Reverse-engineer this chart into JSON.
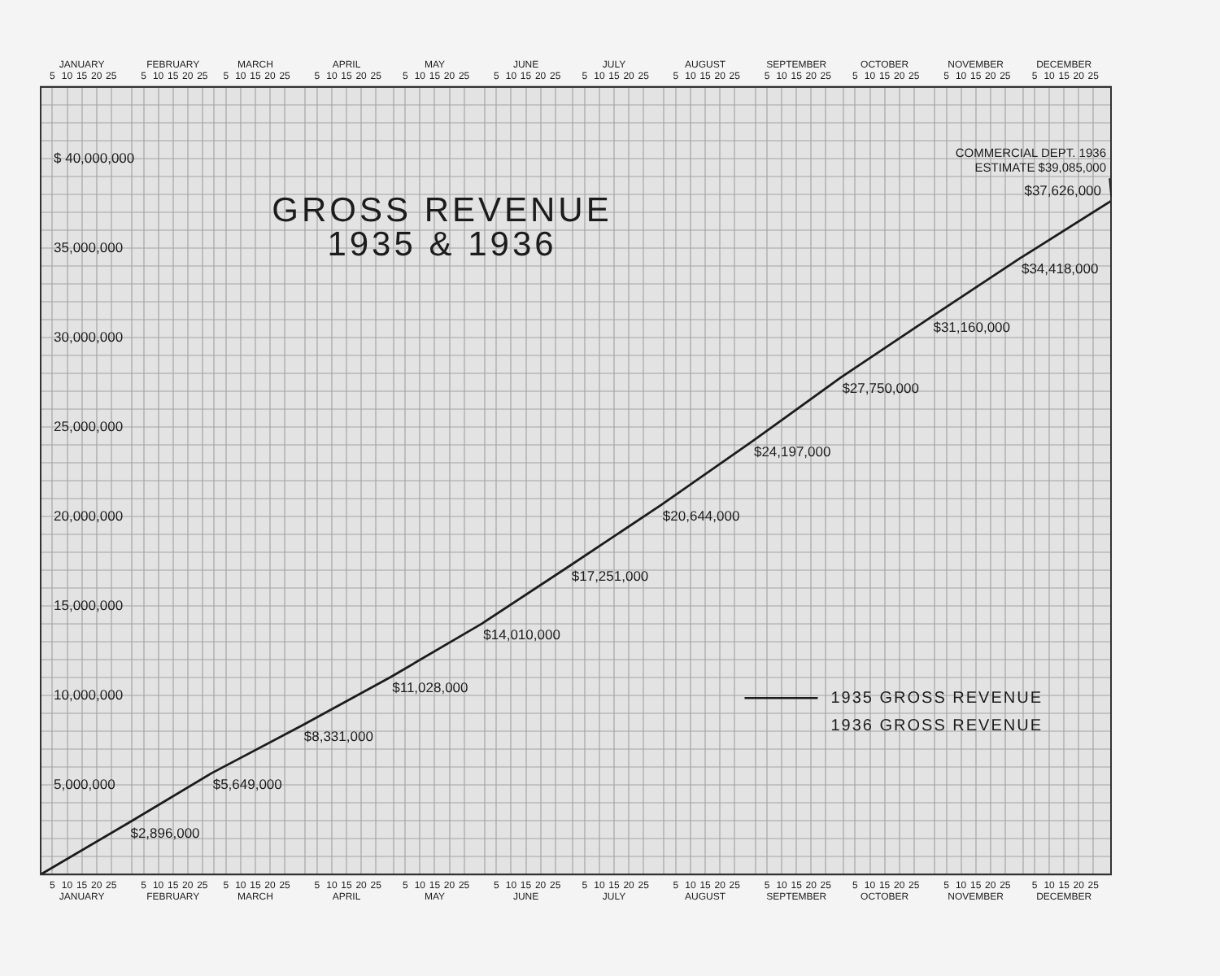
{
  "chart_data": {
    "type": "line",
    "title": "GROSS REVENUE",
    "subtitle": "1935 & 1936",
    "x": [
      "--01-01",
      "--01-31",
      "--02-28",
      "--03-31",
      "--04-30",
      "--05-31",
      "--06-30",
      "--07-31",
      "--08-31",
      "--09-30",
      "--10-31",
      "--11-30",
      "--12-31"
    ],
    "series": [
      {
        "name": "1935 GROSS REVENUE",
        "color": "#1c1c1c",
        "values": [
          0,
          2896000,
          5649000,
          8331000,
          11028000,
          14010000,
          17251000,
          20644000,
          24197000,
          27750000,
          31160000,
          34418000,
          37626000
        ],
        "value_labels": [
          null,
          "$2,896,000",
          "$5,649,000",
          "$8,331,000",
          "$11,028,000",
          "$14,010,000",
          "$17,251,000",
          "$20,644,000",
          "$24,197,000",
          "$27,750,000",
          "$31,160,000",
          "$34,418,000",
          "$37,626,000"
        ]
      },
      {
        "name": "1936 GROSS REVENUE",
        "values": [
          null,
          null,
          null,
          null,
          null,
          null,
          null,
          null,
          null,
          null,
          null,
          null,
          null
        ]
      }
    ],
    "xlim": [
      "--01-01",
      "--12-31"
    ],
    "xticks": [
      {
        "value": "--01-01",
        "label": null
      },
      {
        "value": "--01-05",
        "label": "5"
      },
      {
        "value": "--01-10",
        "label": "10"
      },
      {
        "value": "--01-15",
        "label": "15\nJANUARY"
      },
      {
        "value": "--01-20",
        "label": "20"
      },
      {
        "value": "--01-25",
        "label": "25"
      },
      {
        "value": "--02-01",
        "label": null
      },
      {
        "value": "--02-05",
        "label": "5"
      },
      {
        "value": "--02-10",
        "label": "10"
      },
      {
        "value": "--02-15",
        "label": "15\nFEBRUARY"
      },
      {
        "value": "--02-20",
        "label": "20"
      },
      {
        "value": "--02-25",
        "label": "25"
      },
      {
        "value": "--03-01",
        "label": null
      },
      {
        "value": "--03-05",
        "label": "5"
      },
      {
        "value": "--03-10",
        "label": "10"
      },
      {
        "value": "--03-15",
        "label": "15\nMARCH"
      },
      {
        "value": "--03-20",
        "label": "20"
      },
      {
        "value": "--03-25",
        "label": "25"
      },
      {
        "value": "--04-01",
        "label": null
      },
      {
        "value": "--04-05",
        "label": "5"
      },
      {
        "value": "--04-10",
        "label": "10"
      },
      {
        "value": "--04-15",
        "label": "15\nAPRIL"
      },
      {
        "value": "--04-20",
        "label": "20"
      },
      {
        "value": "--04-25",
        "label": "25"
      },
      {
        "value": "--05-01",
        "label": null
      },
      {
        "value": "--05-05",
        "label": "5"
      },
      {
        "value": "--05-10",
        "label": "10"
      },
      {
        "value": "--05-15",
        "label": "15\nMAY"
      },
      {
        "value": "--05-20",
        "label": "20"
      },
      {
        "value": "--05-25",
        "label": "25"
      },
      {
        "value": "--06-01",
        "label": null
      },
      {
        "value": "--06-05",
        "label": "5"
      },
      {
        "value": "--06-10",
        "label": "10"
      },
      {
        "value": "--06-15",
        "label": "15\nJUNE"
      },
      {
        "value": "--06-20",
        "label": "20"
      },
      {
        "value": "--06-25",
        "label": "25"
      },
      {
        "value": "--07-01",
        "label": null
      },
      {
        "value": "--07-05",
        "label": "5"
      },
      {
        "value": "--07-10",
        "label": "10"
      },
      {
        "value": "--07-15",
        "label": "15\nJULY"
      },
      {
        "value": "--07-20",
        "label": "20"
      },
      {
        "value": "--07-25",
        "label": "25"
      },
      {
        "value": "--08-01",
        "label": null
      },
      {
        "value": "--08-05",
        "label": "5"
      },
      {
        "value": "--08-10",
        "label": "10"
      },
      {
        "value": "--08-15",
        "label": "15\nAUGUST"
      },
      {
        "value": "--08-20",
        "label": "20"
      },
      {
        "value": "--08-25",
        "label": "25"
      },
      {
        "value": "--09-01",
        "label": null
      },
      {
        "value": "--09-05",
        "label": "5"
      },
      {
        "value": "--09-10",
        "label": "10"
      },
      {
        "value": "--09-15",
        "label": "15\nSEPTEMBER"
      },
      {
        "value": "--09-20",
        "label": "20"
      },
      {
        "value": "--09-25",
        "label": "25"
      },
      {
        "value": "--10-01",
        "label": null
      },
      {
        "value": "--10-05",
        "label": "5"
      },
      {
        "value": "--10-10",
        "label": "10"
      },
      {
        "value": "--10-15",
        "label": "15\nOCTOBER"
      },
      {
        "value": "--10-20",
        "label": "20"
      },
      {
        "value": "--10-25",
        "label": "25"
      },
      {
        "value": "--11-01",
        "label": null
      },
      {
        "value": "--11-05",
        "label": "5"
      },
      {
        "value": "--11-10",
        "label": "10"
      },
      {
        "value": "--11-15",
        "label": "15\nNOVEMBER"
      },
      {
        "value": "--11-20",
        "label": "20"
      },
      {
        "value": "--11-25",
        "label": "25"
      },
      {
        "value": "--12-01",
        "label": null
      },
      {
        "value": "--12-05",
        "label": "5"
      },
      {
        "value": "--12-10",
        "label": "10"
      },
      {
        "value": "--12-15",
        "label": "15\nDECEMBER"
      },
      {
        "value": "--12-20",
        "label": "20"
      },
      {
        "value": "--12-25",
        "label": "25"
      },
      {
        "value": "--12-31",
        "label": null
      }
    ],
    "x2lim": [
      "--01-01",
      "--12-31"
    ],
    "x2ticks": [
      {
        "value": "--01-01",
        "label": null
      },
      {
        "value": "--01-05",
        "label": "5"
      },
      {
        "value": "--01-10",
        "label": "10"
      },
      {
        "value": "--01-15",
        "label": "JANUARY\n15"
      },
      {
        "value": "--01-20",
        "label": "20"
      },
      {
        "value": "--01-25",
        "label": "25"
      },
      {
        "value": "--02-01",
        "label": null
      },
      {
        "value": "--02-05",
        "label": "5"
      },
      {
        "value": "--02-10",
        "label": "10"
      },
      {
        "value": "--02-15",
        "label": "FEBRUARY\n15"
      },
      {
        "value": "--02-20",
        "label": "20"
      },
      {
        "value": "--02-25",
        "label": "25"
      },
      {
        "value": "--03-01",
        "label": null
      },
      {
        "value": "--03-05",
        "label": "5"
      },
      {
        "value": "--03-10",
        "label": "10"
      },
      {
        "value": "--03-15",
        "label": "MARCH\n15"
      },
      {
        "value": "--03-20",
        "label": "20"
      },
      {
        "value": "--03-25",
        "label": "25"
      },
      {
        "value": "--04-01",
        "label": null
      },
      {
        "value": "--04-05",
        "label": "5"
      },
      {
        "value": "--04-10",
        "label": "10"
      },
      {
        "value": "--04-15",
        "label": "APRIL\n15"
      },
      {
        "value": "--04-20",
        "label": "20"
      },
      {
        "value": "--04-25",
        "label": "25"
      },
      {
        "value": "--05-01",
        "label": null
      },
      {
        "value": "--05-05",
        "label": "5"
      },
      {
        "value": "--05-10",
        "label": "10"
      },
      {
        "value": "--05-15",
        "label": "MAY\n15"
      },
      {
        "value": "--05-20",
        "label": "20"
      },
      {
        "value": "--05-25",
        "label": "25"
      },
      {
        "value": "--06-01",
        "label": null
      },
      {
        "value": "--06-05",
        "label": "5"
      },
      {
        "value": "--06-10",
        "label": "10"
      },
      {
        "value": "--06-15",
        "label": "JUNE\n15"
      },
      {
        "value": "--06-20",
        "label": "20"
      },
      {
        "value": "--06-25",
        "label": "25"
      },
      {
        "value": "--07-01",
        "label": null
      },
      {
        "value": "--07-05",
        "label": "5"
      },
      {
        "value": "--07-10",
        "label": "10"
      },
      {
        "value": "--07-15",
        "label": "JULY\n15"
      },
      {
        "value": "--07-20",
        "label": "20"
      },
      {
        "value": "--07-25",
        "label": "25"
      },
      {
        "value": "--08-01",
        "label": null
      },
      {
        "value": "--08-05",
        "label": "5"
      },
      {
        "value": "--08-10",
        "label": "10"
      },
      {
        "value": "--08-15",
        "label": "AUGUST\n15"
      },
      {
        "value": "--08-20",
        "label": "20"
      },
      {
        "value": "--08-25",
        "label": "25"
      },
      {
        "value": "--09-01",
        "label": null
      },
      {
        "value": "--09-05",
        "label": "5"
      },
      {
        "value": "--09-10",
        "label": "10"
      },
      {
        "value": "--09-15",
        "label": "SEPTEMBER\n15"
      },
      {
        "value": "--09-20",
        "label": "20"
      },
      {
        "value": "--09-25",
        "label": "25"
      },
      {
        "value": "--10-01",
        "label": null
      },
      {
        "value": "--10-05",
        "label": "5"
      },
      {
        "value": "--10-10",
        "label": "10"
      },
      {
        "value": "--10-15",
        "label": "OCTOBER\n15"
      },
      {
        "value": "--10-20",
        "label": "20"
      },
      {
        "value": "--10-25",
        "label": "25"
      },
      {
        "value": "--11-01",
        "label": null
      },
      {
        "value": "--11-05",
        "label": "5"
      },
      {
        "value": "--11-10",
        "label": "10"
      },
      {
        "value": "--11-15",
        "label": "NOVEMBER\n15"
      },
      {
        "value": "--11-20",
        "label": "20"
      },
      {
        "value": "--11-25",
        "label": "25"
      },
      {
        "value": "--12-01",
        "label": null
      },
      {
        "value": "--12-05",
        "label": "5"
      },
      {
        "value": "--12-10",
        "label": "10"
      },
      {
        "value": "--12-15",
        "label": "DECEMBER\n15"
      },
      {
        "value": "--12-20",
        "label": "20"
      },
      {
        "value": "--12-25",
        "label": "25"
      },
      {
        "value": "--12-31",
        "label": null
      }
    ],
    "ylim": [
      0,
      44000000
    ],
    "yticks": [
      {
        "value": 0,
        "label": null
      },
      {
        "value": 1000000,
        "label": null
      },
      {
        "value": 2000000,
        "label": null
      },
      {
        "value": 3000000,
        "label": null
      },
      {
        "value": 4000000,
        "label": null
      },
      {
        "value": 5000000,
        "label": "5,000,000"
      },
      {
        "value": 6000000,
        "label": null
      },
      {
        "value": 7000000,
        "label": null
      },
      {
        "value": 8000000,
        "label": null
      },
      {
        "value": 9000000,
        "label": null
      },
      {
        "value": 10000000,
        "label": "10,000,000"
      },
      {
        "value": 11000000,
        "label": null
      },
      {
        "value": 12000000,
        "label": null
      },
      {
        "value": 13000000,
        "label": null
      },
      {
        "value": 14000000,
        "label": null
      },
      {
        "value": 15000000,
        "label": "15,000,000"
      },
      {
        "value": 16000000,
        "label": null
      },
      {
        "value": 17000000,
        "label": null
      },
      {
        "value": 18000000,
        "label": null
      },
      {
        "value": 19000000,
        "label": null
      },
      {
        "value": 20000000,
        "label": "20,000,000"
      },
      {
        "value": 21000000,
        "label": null
      },
      {
        "value": 22000000,
        "label": null
      },
      {
        "value": 23000000,
        "label": null
      },
      {
        "value": 24000000,
        "label": null
      },
      {
        "value": 25000000,
        "label": "25,000,000"
      },
      {
        "value": 26000000,
        "label": null
      },
      {
        "value": 27000000,
        "label": null
      },
      {
        "value": 28000000,
        "label": null
      },
      {
        "value": 29000000,
        "label": null
      },
      {
        "value": 30000000,
        "label": "30,000,000"
      },
      {
        "value": 31000000,
        "label": null
      },
      {
        "value": 32000000,
        "label": null
      },
      {
        "value": 33000000,
        "label": null
      },
      {
        "value": 34000000,
        "label": null
      },
      {
        "value": 35000000,
        "label": "35,000,000"
      },
      {
        "value": 36000000,
        "label": null
      },
      {
        "value": 37000000,
        "label": null
      },
      {
        "value": 38000000,
        "label": null
      },
      {
        "value": 39000000,
        "label": null
      },
      {
        "value": 40000000,
        "label": "$ 40,000,000"
      },
      {
        "value": 41000000,
        "label": null
      },
      {
        "value": 42000000,
        "label": null
      },
      {
        "value": 43000000,
        "label": null
      },
      {
        "value": 44000000,
        "label": null
      }
    ],
    "annotations": [
      {
        "text": "COMMERCIAL DEPT. 1936\nESTIMATE $39,085,000",
        "x": "--12-31",
        "y": 37626000
      }
    ],
    "legend": "bottom right",
    "grid": true,
    "marker": "none",
    "line_style": "solid"
  }
}
